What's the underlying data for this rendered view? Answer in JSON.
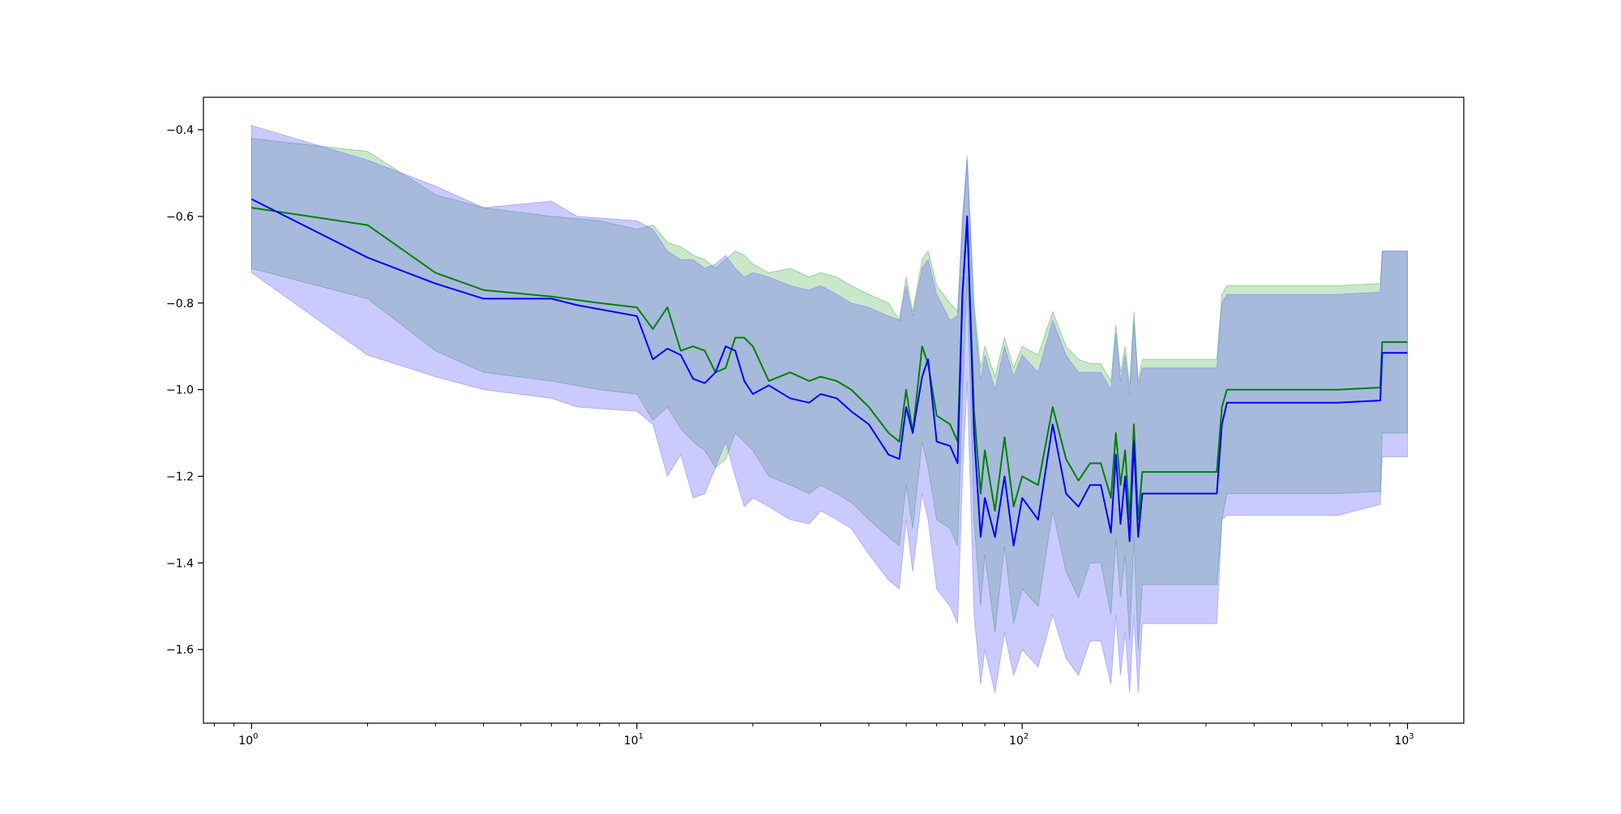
{
  "chart_data": {
    "type": "line",
    "title": "",
    "xlabel": "",
    "ylabel": "",
    "xscale": "log",
    "xlim": [
      0.75,
      1400
    ],
    "ylim": [
      -1.77,
      -0.325
    ],
    "x_ticks": [
      {
        "value": 1,
        "base": "10",
        "exp": "0"
      },
      {
        "value": 10,
        "base": "10",
        "exp": "1"
      },
      {
        "value": 100,
        "base": "10",
        "exp": "2"
      },
      {
        "value": 1000,
        "base": "10",
        "exp": "3"
      }
    ],
    "y_ticks": [
      {
        "value": -0.4,
        "label": "−0.4"
      },
      {
        "value": -0.6,
        "label": "−0.6"
      },
      {
        "value": -0.8,
        "label": "−0.8"
      },
      {
        "value": -1.0,
        "label": "−1.0"
      },
      {
        "value": -1.2,
        "label": "−1.2"
      },
      {
        "value": -1.4,
        "label": "−1.4"
      },
      {
        "value": -1.6,
        "label": "−1.6"
      }
    ],
    "grid": false,
    "legend": "none",
    "series": [
      {
        "color": "#008000",
        "band_color": "#2ca02c",
        "x": [
          1,
          2,
          3,
          4,
          6,
          8,
          10,
          11,
          12,
          13,
          14,
          15,
          16,
          17,
          18,
          19,
          20,
          22,
          25,
          28,
          30,
          33,
          36,
          40,
          45,
          48,
          50,
          52,
          55,
          57,
          60,
          65,
          68,
          70,
          72,
          75,
          78,
          80,
          85,
          90,
          95,
          100,
          110,
          120,
          130,
          140,
          150,
          160,
          170,
          175,
          180,
          185,
          190,
          195,
          200,
          205,
          250,
          320,
          330,
          340,
          660,
          850,
          860,
          1000
        ],
        "values": [
          -0.58,
          -0.62,
          -0.73,
          -0.77,
          -0.785,
          -0.8,
          -0.81,
          -0.86,
          -0.81,
          -0.91,
          -0.9,
          -0.91,
          -0.96,
          -0.95,
          -0.88,
          -0.88,
          -0.9,
          -0.98,
          -0.96,
          -0.98,
          -0.97,
          -0.98,
          -1.0,
          -1.04,
          -1.1,
          -1.12,
          -1.0,
          -1.1,
          -0.9,
          -0.94,
          -1.06,
          -1.08,
          -1.12,
          -0.78,
          -0.61,
          -1.05,
          -1.24,
          -1.14,
          -1.28,
          -1.11,
          -1.27,
          -1.2,
          -1.22,
          -1.04,
          -1.16,
          -1.21,
          -1.17,
          -1.17,
          -1.25,
          -1.1,
          -1.22,
          -1.14,
          -1.3,
          -1.08,
          -1.3,
          -1.19,
          -1.19,
          -1.19,
          -1.04,
          -1.0,
          -1.0,
          -0.995,
          -0.89,
          -0.89
        ],
        "band_upper": [
          -0.42,
          -0.45,
          -0.55,
          -0.58,
          -0.6,
          -0.61,
          -0.63,
          -0.62,
          -0.66,
          -0.67,
          -0.69,
          -0.7,
          -0.72,
          -0.7,
          -0.68,
          -0.69,
          -0.71,
          -0.73,
          -0.72,
          -0.74,
          -0.73,
          -0.74,
          -0.76,
          -0.78,
          -0.8,
          -0.84,
          -0.74,
          -0.82,
          -0.7,
          -0.68,
          -0.76,
          -0.8,
          -0.82,
          -0.62,
          -0.47,
          -0.8,
          -0.95,
          -0.9,
          -0.97,
          -0.88,
          -0.95,
          -0.9,
          -0.92,
          -0.82,
          -0.9,
          -0.93,
          -0.94,
          -0.94,
          -0.98,
          -0.85,
          -0.96,
          -0.9,
          -0.99,
          -0.82,
          -0.98,
          -0.93,
          -0.93,
          -0.93,
          -0.78,
          -0.76,
          -0.76,
          -0.755,
          -0.68,
          -0.68
        ],
        "band_lower": [
          -0.72,
          -0.79,
          -0.91,
          -0.96,
          -0.98,
          -1.0,
          -1.01,
          -1.07,
          -1.04,
          -1.09,
          -1.12,
          -1.14,
          -1.18,
          -1.16,
          -1.1,
          -1.12,
          -1.14,
          -1.2,
          -1.22,
          -1.24,
          -1.22,
          -1.24,
          -1.26,
          -1.3,
          -1.34,
          -1.36,
          -1.22,
          -1.32,
          -1.12,
          -1.18,
          -1.3,
          -1.32,
          -1.36,
          -1.02,
          -0.74,
          -1.3,
          -1.5,
          -1.38,
          -1.56,
          -1.36,
          -1.54,
          -1.46,
          -1.5,
          -1.28,
          -1.42,
          -1.48,
          -1.4,
          -1.4,
          -1.52,
          -1.34,
          -1.48,
          -1.38,
          -1.58,
          -1.34,
          -1.6,
          -1.45,
          -1.45,
          -1.45,
          -1.3,
          -1.24,
          -1.24,
          -1.235,
          -1.1,
          -1.1
        ]
      },
      {
        "color": "#0000ff",
        "band_color": "#6666ff",
        "x": [
          1,
          2,
          3,
          4,
          6,
          7,
          10,
          11,
          12,
          13,
          14,
          15,
          16,
          17,
          18,
          19,
          20,
          22,
          25,
          28,
          30,
          33,
          36,
          40,
          45,
          48,
          50,
          52,
          55,
          57,
          60,
          65,
          68,
          70,
          72,
          75,
          78,
          80,
          85,
          90,
          95,
          100,
          110,
          120,
          130,
          140,
          150,
          160,
          170,
          175,
          180,
          185,
          190,
          195,
          200,
          205,
          250,
          320,
          330,
          340,
          660,
          850,
          860,
          1000
        ],
        "values": [
          -0.56,
          -0.695,
          -0.755,
          -0.79,
          -0.79,
          -0.805,
          -0.83,
          -0.93,
          -0.905,
          -0.92,
          -0.975,
          -0.985,
          -0.96,
          -0.9,
          -0.91,
          -0.98,
          -1.01,
          -0.99,
          -1.02,
          -1.03,
          -1.01,
          -1.02,
          -1.05,
          -1.08,
          -1.15,
          -1.16,
          -1.04,
          -1.1,
          -0.97,
          -0.93,
          -1.12,
          -1.13,
          -1.17,
          -0.78,
          -0.6,
          -1.1,
          -1.34,
          -1.25,
          -1.34,
          -1.2,
          -1.36,
          -1.25,
          -1.3,
          -1.08,
          -1.24,
          -1.27,
          -1.22,
          -1.22,
          -1.33,
          -1.15,
          -1.31,
          -1.2,
          -1.35,
          -1.12,
          -1.34,
          -1.24,
          -1.24,
          -1.24,
          -1.08,
          -1.03,
          -1.03,
          -1.025,
          -0.915,
          -0.915
        ],
        "band_upper": [
          -0.39,
          -0.47,
          -0.53,
          -0.58,
          -0.565,
          -0.6,
          -0.61,
          -0.63,
          -0.68,
          -0.7,
          -0.7,
          -0.72,
          -0.71,
          -0.69,
          -0.72,
          -0.74,
          -0.73,
          -0.74,
          -0.76,
          -0.77,
          -0.76,
          -0.78,
          -0.8,
          -0.81,
          -0.83,
          -0.84,
          -0.76,
          -0.83,
          -0.72,
          -0.7,
          -0.78,
          -0.84,
          -0.83,
          -0.6,
          -0.46,
          -0.82,
          -0.98,
          -0.92,
          -1.0,
          -0.9,
          -0.97,
          -0.92,
          -0.96,
          -0.84,
          -0.92,
          -0.96,
          -0.96,
          -0.96,
          -1.0,
          -0.87,
          -0.98,
          -0.92,
          -1.01,
          -0.84,
          -0.99,
          -0.95,
          -0.95,
          -0.95,
          -0.8,
          -0.78,
          -0.78,
          -0.775,
          -0.68,
          -0.68
        ],
        "band_lower": [
          -0.73,
          -0.92,
          -0.97,
          -1.0,
          -1.02,
          -1.04,
          -1.05,
          -1.08,
          -1.2,
          -1.15,
          -1.25,
          -1.24,
          -1.18,
          -1.12,
          -1.2,
          -1.27,
          -1.25,
          -1.27,
          -1.3,
          -1.31,
          -1.28,
          -1.3,
          -1.32,
          -1.38,
          -1.44,
          -1.46,
          -1.3,
          -1.42,
          -1.24,
          -1.3,
          -1.46,
          -1.5,
          -1.54,
          -1.2,
          -0.98,
          -1.52,
          -1.68,
          -1.6,
          -1.7,
          -1.56,
          -1.66,
          -1.6,
          -1.64,
          -1.52,
          -1.62,
          -1.66,
          -1.58,
          -1.58,
          -1.68,
          -1.52,
          -1.66,
          -1.56,
          -1.7,
          -1.52,
          -1.7,
          -1.54,
          -1.54,
          -1.54,
          -1.3,
          -1.29,
          -1.29,
          -1.265,
          -1.155,
          -1.155
        ]
      }
    ]
  }
}
